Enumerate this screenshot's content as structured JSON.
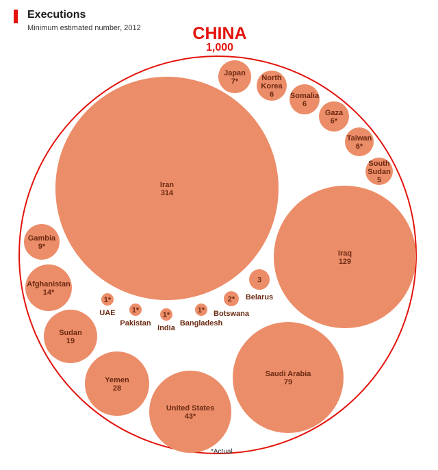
{
  "colors": {
    "bubble": "#ec8d69",
    "china_ring": "#e3120b",
    "accent": "#e3120b",
    "label": "#6b2a12"
  },
  "chart_data": {
    "type": "bubble",
    "title": "Executions",
    "subtitle": "Minimum estimated number, 2012",
    "footnote": "*Actual",
    "total": {
      "name": "CHINA",
      "value": "1,000"
    },
    "countries": [
      {
        "name": "Iran",
        "value": "314"
      },
      {
        "name": "Iraq",
        "value": "129"
      },
      {
        "name": "Saudi Arabia",
        "value": "79"
      },
      {
        "name": "United States",
        "value": "43*"
      },
      {
        "name": "Yemen",
        "value": "28"
      },
      {
        "name": "Sudan",
        "value": "19"
      },
      {
        "name": "Afghanistan",
        "value": "14*"
      },
      {
        "name": "Gambia",
        "value": "9*"
      },
      {
        "name": "Japan",
        "value": "7*"
      },
      {
        "name": "North Korea",
        "value": "6"
      },
      {
        "name": "Somalia",
        "value": "6"
      },
      {
        "name": "Gaza",
        "value": "6*"
      },
      {
        "name": "Taiwan",
        "value": "6*"
      },
      {
        "name": "South Sudan",
        "value": "5"
      },
      {
        "name": "Belarus",
        "value": "3"
      },
      {
        "name": "Botswana",
        "value": "2*"
      },
      {
        "name": "UAE",
        "value": "1*"
      },
      {
        "name": "Pakistan",
        "value": "1*"
      },
      {
        "name": "India",
        "value": "1*"
      },
      {
        "name": "Bangladesh",
        "value": "1*"
      }
    ]
  }
}
